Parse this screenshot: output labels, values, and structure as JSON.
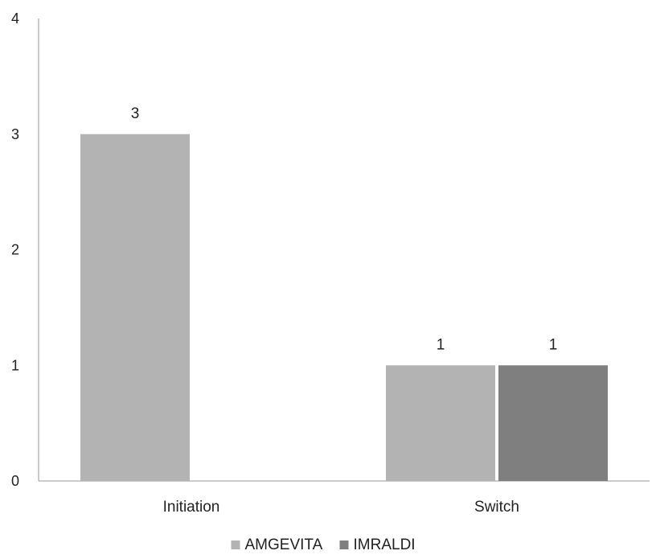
{
  "chart_data": {
    "type": "bar",
    "title": "",
    "xlabel": "",
    "ylabel": "",
    "categories": [
      "Initiation",
      "Switch"
    ],
    "series": [
      {
        "name": "AMGEVITA",
        "color": "#b3b3b3",
        "values": [
          3,
          1
        ]
      },
      {
        "name": "IMRALDI",
        "color": "#7f7f7f",
        "values": [
          null,
          1
        ]
      }
    ],
    "ylim": [
      0,
      4
    ],
    "yticks": [
      "0",
      "1",
      "2",
      "3",
      "4"
    ],
    "data_labels": true,
    "grid": false,
    "legend_position": "bottom"
  }
}
